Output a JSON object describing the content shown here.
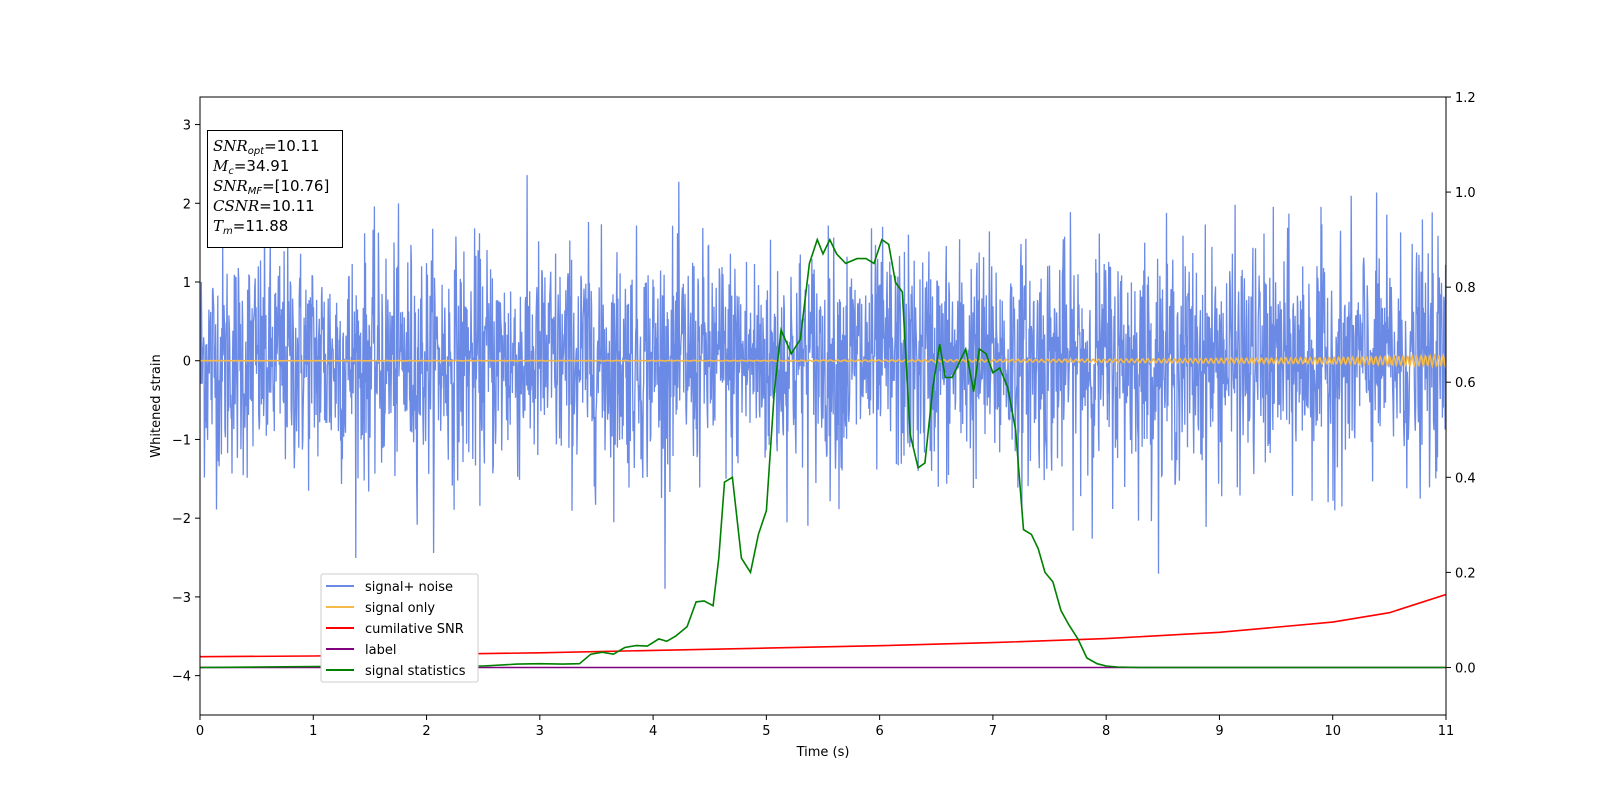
{
  "info_box": {
    "snr_opt": {
      "sym": "SNR",
      "sub": "opt",
      "value": "=10.11"
    },
    "mc": {
      "sym": "M",
      "sub": "c",
      "value": "=34.91"
    },
    "snr_mf": {
      "sym": "SNR",
      "sub": "MF",
      "value": "=[10.76]"
    },
    "csnr": {
      "sym": "CSNR",
      "value": "=10.11"
    },
    "tm": {
      "sym": "T",
      "sub": "m",
      "value": "=11.88"
    }
  },
  "chart_data": {
    "type": "line",
    "xlabel": "Time (s)",
    "ylabel": "Whitened strain",
    "xlim": [
      0,
      11
    ],
    "ylim": [
      -4.5,
      3.35
    ],
    "y2lim": [
      -0.1,
      1.2
    ],
    "x_ticks": [
      "0",
      "1",
      "2",
      "3",
      "4",
      "5",
      "6",
      "7",
      "8",
      "9",
      "10",
      "11"
    ],
    "y_ticks": [
      "3",
      "2",
      "1",
      "0",
      "−1",
      "−2",
      "−3",
      "−4"
    ],
    "y2_ticks": [
      "1.2",
      "1.0",
      "0.8",
      "0.6",
      "0.4",
      "0.2",
      "0.0"
    ],
    "legend_position": "lower-left",
    "series": [
      {
        "name": "signal+ noise",
        "color": "#6b8ae6",
        "axis": "left",
        "noise": {
          "std": 0.72,
          "range": [
            -3.15,
            3.0
          ]
        }
      },
      {
        "name": "signal only",
        "color": "#f5b94a",
        "axis": "left",
        "envelope": {
          "x": [
            0,
            5,
            8,
            10,
            11
          ],
          "amp": [
            0.0,
            0.005,
            0.02,
            0.04,
            0.07
          ]
        }
      },
      {
        "name": "cumilative SNR",
        "color": "#ff0000",
        "axis": "left",
        "x": [
          0,
          1,
          2,
          3,
          4,
          5,
          6,
          7,
          8,
          9,
          10,
          10.5,
          11
        ],
        "y": [
          -3.76,
          -3.75,
          -3.73,
          -3.71,
          -3.68,
          -3.65,
          -3.62,
          -3.58,
          -3.53,
          -3.45,
          -3.32,
          -3.2,
          -2.97
        ]
      },
      {
        "name": "label",
        "color": "#800080",
        "axis": "right",
        "x": [
          0,
          11
        ],
        "y": [
          0.0,
          0.0
        ]
      },
      {
        "name": "signal statistics",
        "color": "#008000",
        "axis": "right",
        "x": [
          0,
          0.5,
          1,
          1.5,
          2,
          2.5,
          2.8,
          3,
          3.2,
          3.35,
          3.45,
          3.55,
          3.65,
          3.75,
          3.85,
          3.95,
          4.05,
          4.12,
          4.2,
          4.3,
          4.38,
          4.45,
          4.53,
          4.58,
          4.63,
          4.7,
          4.78,
          4.86,
          4.93,
          5.0,
          5.07,
          5.13,
          5.22,
          5.3,
          5.38,
          5.45,
          5.5,
          5.56,
          5.62,
          5.7,
          5.8,
          5.88,
          5.95,
          6.02,
          6.08,
          6.14,
          6.2,
          6.27,
          6.34,
          6.4,
          6.47,
          6.53,
          6.58,
          6.64,
          6.7,
          6.76,
          6.83,
          6.88,
          6.94,
          7.0,
          7.06,
          7.13,
          7.2,
          7.27,
          7.34,
          7.4,
          7.46,
          7.53,
          7.6,
          7.67,
          7.75,
          7.83,
          7.92,
          8.0,
          8.1,
          8.3,
          8.6,
          11
        ],
        "y": [
          0.0,
          0.001,
          0.002,
          0.003,
          0.003,
          0.003,
          0.007,
          0.008,
          0.007,
          0.008,
          0.028,
          0.032,
          0.028,
          0.042,
          0.046,
          0.045,
          0.06,
          0.055,
          0.066,
          0.086,
          0.138,
          0.14,
          0.13,
          0.23,
          0.39,
          0.4,
          0.23,
          0.2,
          0.28,
          0.33,
          0.58,
          0.71,
          0.66,
          0.69,
          0.85,
          0.9,
          0.87,
          0.9,
          0.87,
          0.85,
          0.86,
          0.86,
          0.85,
          0.9,
          0.89,
          0.81,
          0.79,
          0.49,
          0.42,
          0.43,
          0.59,
          0.68,
          0.61,
          0.61,
          0.64,
          0.67,
          0.58,
          0.67,
          0.66,
          0.62,
          0.63,
          0.59,
          0.5,
          0.29,
          0.28,
          0.25,
          0.2,
          0.18,
          0.12,
          0.09,
          0.06,
          0.02,
          0.008,
          0.003,
          0.001,
          0.0,
          0.0,
          0.0
        ]
      }
    ]
  }
}
